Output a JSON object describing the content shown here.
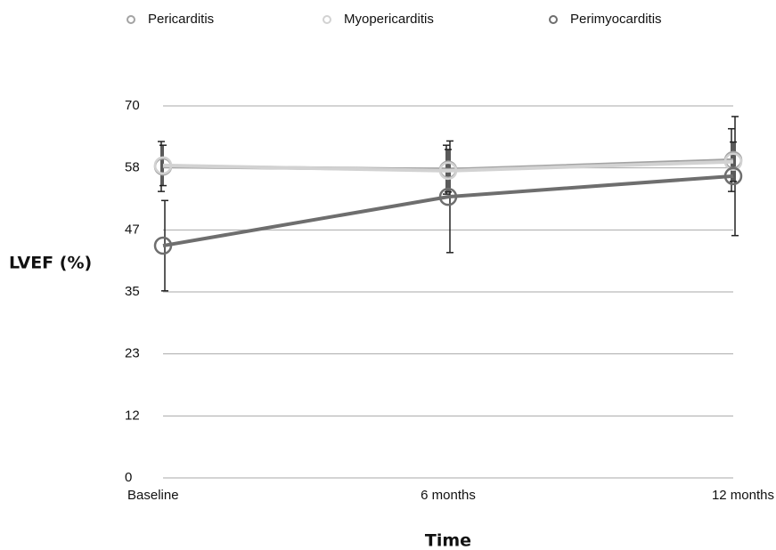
{
  "chart_data": {
    "type": "line",
    "categories": [
      "Baseline",
      "6 months",
      "12 months"
    ],
    "x_label": "Time",
    "y_label": "LVEF (%)",
    "ylim": [
      0,
      70
    ],
    "yticks": [
      0,
      {
        "value": 11.67,
        "label": "12"
      },
      {
        "value": 23.33,
        "label": "23"
      },
      35,
      {
        "value": 46.67,
        "label": "47"
      },
      {
        "value": 58.33,
        "label": "58"
      },
      70
    ],
    "grid": true,
    "legend": "top",
    "series": [
      {
        "name": "Pericarditis",
        "color": "#a3a3a3",
        "values": [
          58.6,
          58.0,
          59.8
        ],
        "errors": [
          4.7,
          4.6,
          5.9
        ]
      },
      {
        "name": "Myopericarditis",
        "color": "#d2d2d2",
        "values": [
          58.8,
          57.8,
          59.5
        ],
        "errors": [
          3.8,
          4.0,
          3.7
        ]
      },
      {
        "name": "Perimyocarditis",
        "color": "#6e6e6e",
        "values": [
          43.7,
          52.9,
          56.8
        ],
        "errors": [
          8.5,
          10.5,
          11.2
        ]
      }
    ]
  }
}
